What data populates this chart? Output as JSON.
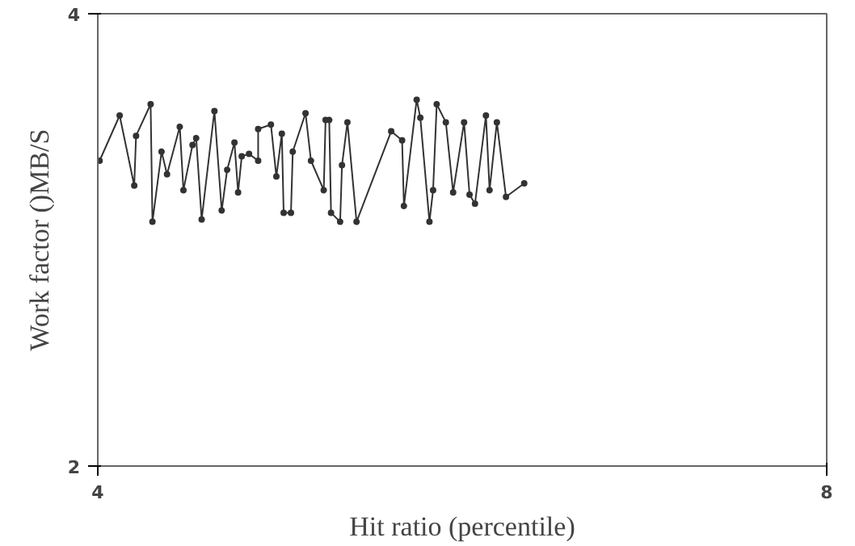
{
  "chart_data": {
    "type": "line",
    "xlabel": "Hit ratio (percentile)",
    "ylabel": "Work factor ()MB/S",
    "xlim": [
      4,
      8
    ],
    "ylim": [
      2,
      4
    ],
    "xticks": [
      4,
      8
    ],
    "yticks": [
      2,
      4
    ],
    "marker": "circle",
    "line_style": "solid",
    "series": [
      {
        "color": "#333333",
        "x": [
          4.01,
          4.12,
          4.2,
          4.21,
          4.29,
          4.3,
          4.35,
          4.38,
          4.45,
          4.47,
          4.52,
          4.54,
          4.57,
          4.64,
          4.68,
          4.71,
          4.75,
          4.77,
          4.79,
          4.83,
          4.88,
          4.88,
          4.95,
          4.98,
          5.01,
          5.02,
          5.06,
          5.07,
          5.14,
          5.17,
          5.24,
          5.25,
          5.27,
          5.28,
          5.33,
          5.34,
          5.37,
          5.42,
          5.61,
          5.67,
          5.68,
          5.75,
          5.77,
          5.82,
          5.84,
          5.86,
          5.91,
          5.95,
          6.01,
          6.04,
          6.07,
          6.13,
          6.15,
          6.19,
          6.24,
          6.34
        ],
        "values": [
          3.35,
          3.55,
          3.24,
          3.46,
          3.6,
          3.08,
          3.39,
          3.29,
          3.5,
          3.22,
          3.42,
          3.45,
          3.09,
          3.57,
          3.13,
          3.31,
          3.43,
          3.21,
          3.37,
          3.38,
          3.35,
          3.49,
          3.51,
          3.28,
          3.47,
          3.12,
          3.12,
          3.39,
          3.56,
          3.35,
          3.22,
          3.53,
          3.53,
          3.12,
          3.08,
          3.33,
          3.52,
          3.08,
          3.48,
          3.44,
          3.15,
          3.62,
          3.54,
          3.08,
          3.22,
          3.6,
          3.52,
          3.21,
          3.52,
          3.2,
          3.16,
          3.55,
          3.22,
          3.52,
          3.19,
          3.25
        ]
      }
    ]
  }
}
